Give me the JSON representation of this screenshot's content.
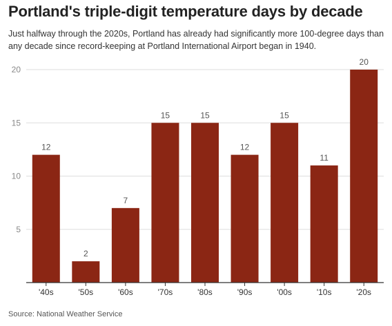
{
  "title": "Portland's triple-digit temperature days by decade",
  "subtitle": "Just halfway through the 2020s, Portland has already had significantly more 100-degree days than any decade since record-keeping at Portland International Airport began in 1940.",
  "source": "Source: National Weather Service",
  "colors": {
    "bar": "#8b2614",
    "axis": "#333333",
    "grid": "#dddddd",
    "tick_text": "#888888"
  },
  "chart_data": {
    "type": "bar",
    "categories": [
      "'40s",
      "'50s",
      "'60s",
      "'70s",
      "'80s",
      "'90s",
      "'00s",
      "'10s",
      "'20s"
    ],
    "values": [
      12,
      2,
      7,
      15,
      15,
      12,
      15,
      11,
      20
    ],
    "yticks": [
      5,
      10,
      15,
      20
    ],
    "ylim": [
      0,
      20
    ],
    "xlabel": "",
    "ylabel": "",
    "grid": true,
    "data_labels": true
  }
}
